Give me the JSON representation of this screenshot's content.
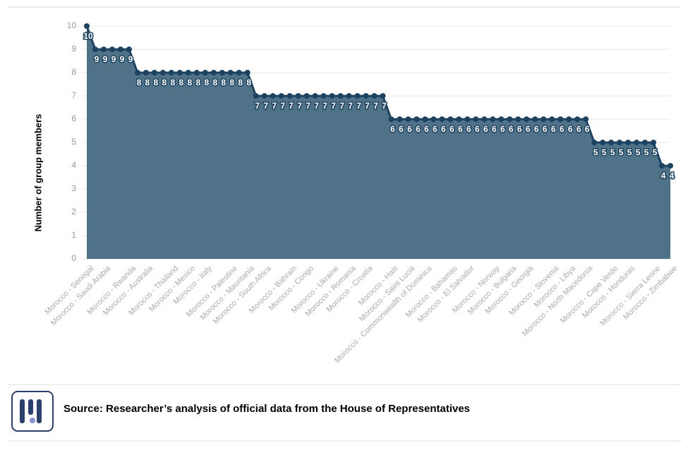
{
  "chart_data": {
    "type": "area",
    "y_label": "Number of group members",
    "categories": [
      "Morocco - Senegal",
      null,
      "Morocco - Saudi Arabia",
      null,
      null,
      "Morocco - Rwanda",
      null,
      "Morocco - Australia",
      null,
      null,
      "Morocco - Thailand",
      null,
      "Morocco - Mexico",
      null,
      "Morocco - Italy",
      null,
      null,
      "Morocco - Palestine",
      null,
      "Morocco - Mauritania",
      null,
      "Morocco - South Africa",
      null,
      null,
      "Morocco - Bahrain",
      null,
      "Morocco - Congo",
      null,
      null,
      "Morocco - Ukraine",
      null,
      "Morocco - Romania",
      null,
      "Morocco - Croatia",
      null,
      null,
      "Morocco - Haiti",
      null,
      "Morocco - Saint Lucia",
      null,
      "Morocco - Commonwealth of Dominica",
      null,
      null,
      "Morocco - Bahamas",
      null,
      "Morocco - El Salvador",
      null,
      null,
      "Morocco - Norway",
      null,
      "Morocco - Bulgaria",
      null,
      "Morocco - Georgia",
      null,
      null,
      "Morocco - Slovenia",
      null,
      "Morocco - Libya",
      null,
      "Morocco - North Macedonia",
      null,
      null,
      "Morocco - Cape Verde",
      null,
      "Morocco - Honduras",
      null,
      null,
      "Morocco - Sierra Leone",
      null,
      "Morocco - Zimbabwe"
    ],
    "values": [
      10,
      9,
      9,
      9,
      9,
      9,
      8,
      8,
      8,
      8,
      8,
      8,
      8,
      8,
      8,
      8,
      8,
      8,
      8,
      8,
      7,
      7,
      7,
      7,
      7,
      7,
      7,
      7,
      7,
      7,
      7,
      7,
      7,
      7,
      7,
      7,
      6,
      6,
      6,
      6,
      6,
      6,
      6,
      6,
      6,
      6,
      6,
      6,
      6,
      6,
      6,
      6,
      6,
      6,
      6,
      6,
      6,
      6,
      6,
      6,
      5,
      5,
      5,
      5,
      5,
      5,
      5,
      5,
      4,
      4
    ],
    "color": "#1d4260",
    "fill": "#4f7288",
    "ylim": [
      0,
      10
    ],
    "yticks": [
      0,
      1,
      2,
      3,
      4,
      5,
      6,
      7,
      8,
      9,
      10
    ],
    "grid": true
  },
  "source": "Source: Researcher’s analysis of official data from the House of Representatives"
}
